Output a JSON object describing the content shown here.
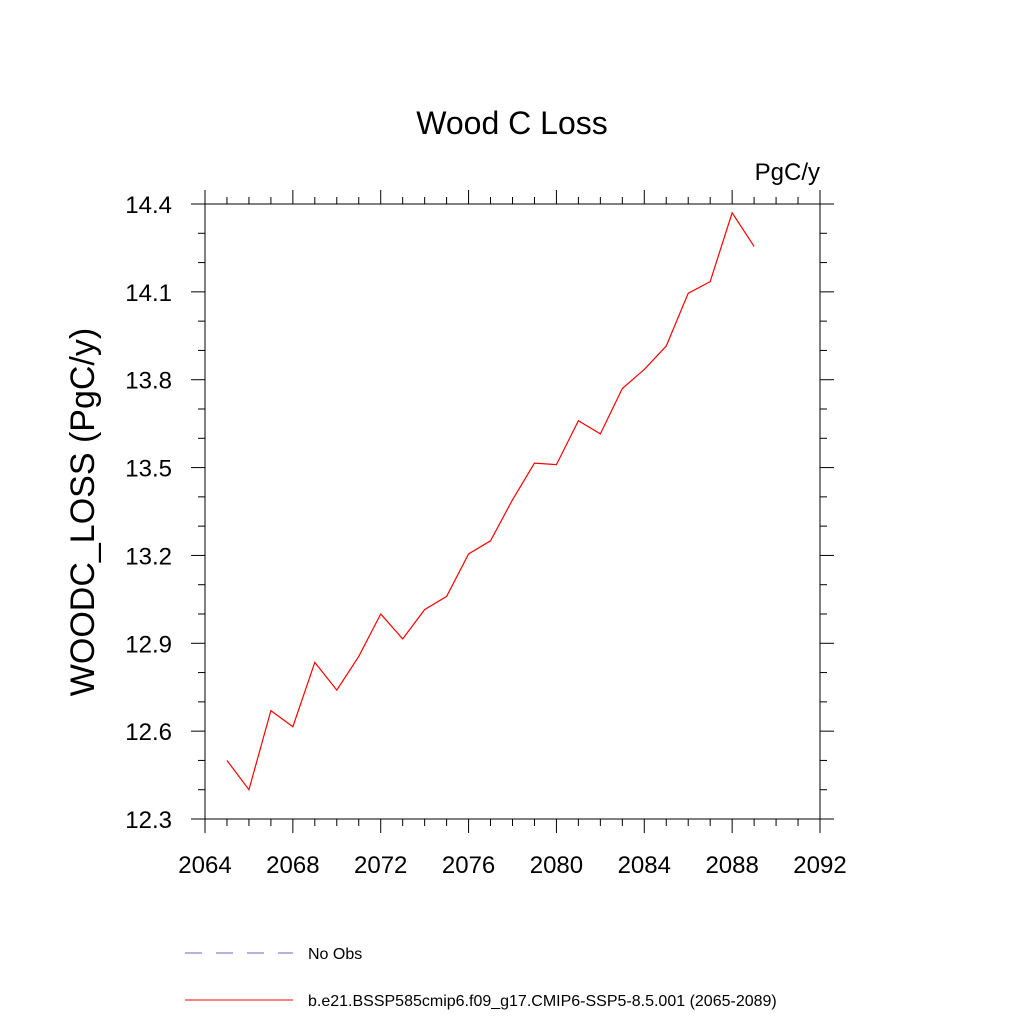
{
  "chart_data": {
    "type": "line",
    "title": "Wood C Loss",
    "units": "PgC/y",
    "xlabel": "",
    "ylabel": "WOODC_LOSS  (PgC/y)",
    "xlim": [
      2064,
      2092
    ],
    "ylim": [
      12.3,
      14.4
    ],
    "x_ticks": [
      2064,
      2068,
      2072,
      2076,
      2080,
      2084,
      2088,
      2092
    ],
    "x_tick_labels": [
      "2064",
      "2068",
      "2072",
      "2076",
      "2080",
      "2084",
      "2088",
      "2092"
    ],
    "y_ticks": [
      12.3,
      12.6,
      12.9,
      13.2,
      13.5,
      13.8,
      14.1,
      14.4
    ],
    "y_tick_labels": [
      "12.3",
      "12.6",
      "12.9",
      "13.2",
      "13.5",
      "13.8",
      "14.1",
      "14.4"
    ],
    "grid": false,
    "legend_position": "bottom",
    "series": [
      {
        "name": "b.e21.BSSP585cmip6.f09_g17.CMIP6-SSP5-8.5.001 (2065-2089)",
        "color": "#ff0000",
        "line_style": "solid",
        "x": [
          2065,
          2066,
          2067,
          2068,
          2069,
          2070,
          2071,
          2072,
          2073,
          2074,
          2075,
          2076,
          2077,
          2078,
          2079,
          2080,
          2081,
          2082,
          2083,
          2084,
          2085,
          2086,
          2087,
          2088,
          2089
        ],
        "values": [
          12.5,
          12.4,
          12.67,
          12.615,
          12.835,
          12.74,
          12.855,
          13.0,
          12.915,
          13.015,
          13.06,
          13.205,
          13.25,
          13.39,
          13.515,
          13.51,
          13.66,
          13.615,
          13.77,
          13.835,
          13.915,
          14.095,
          14.135,
          14.37,
          14.255
        ]
      }
    ],
    "legend": [
      {
        "label": "No Obs",
        "color": "#6666cc",
        "line_style": "dashed"
      },
      {
        "label": "b.e21.BSSP585cmip6.f09_g17.CMIP6-SSP5-8.5.001 (2065-2089)",
        "color": "#ff0000",
        "line_style": "solid"
      }
    ]
  }
}
